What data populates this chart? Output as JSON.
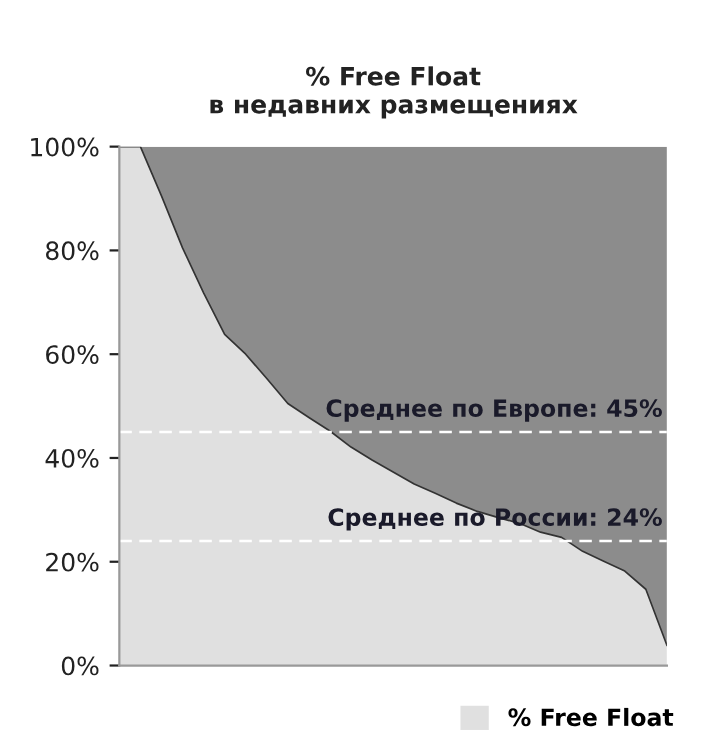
{
  "chart_data": {
    "type": "area",
    "stacked": true,
    "title": "% Free Float\nв недавних размещениях",
    "categories": [
      null,
      null,
      null,
      null,
      null,
      null,
      null,
      null,
      null,
      null,
      null,
      null,
      null,
      null,
      null,
      null,
      null,
      null,
      null,
      null,
      null,
      null,
      null,
      null,
      null,
      null,
      null
    ],
    "series": [
      {
        "name": "% Free Float",
        "color": "#e0e0e0",
        "values": [
          100,
          100,
          90.5,
          80.5,
          71.8,
          63.8,
          60.0,
          55.3,
          50.5,
          47.8,
          45.2,
          42.1,
          39.6,
          37.3,
          35.0,
          33.2,
          31.3,
          29.7,
          28.5,
          27.4,
          25.7,
          24.7,
          22.0,
          20.1,
          18.2,
          14.7,
          3.9
        ]
      },
      {
        "color": "#8c8c8c",
        "values": [
          0,
          0,
          9.5,
          19.5,
          28.2,
          36.2,
          40.0,
          44.7,
          49.5,
          52.2,
          54.8,
          57.9,
          60.4,
          62.7,
          65.0,
          66.8,
          68.7,
          70.3,
          71.5,
          72.6,
          74.3,
          75.3,
          78.0,
          79.9,
          81.8,
          85.3,
          96.1
        ]
      }
    ],
    "ylim": [
      0,
      100
    ],
    "yticks": [
      {
        "value": 0,
        "label": "0%"
      },
      {
        "value": 20,
        "label": "20%"
      },
      {
        "value": 40,
        "label": "40%"
      },
      {
        "value": 60,
        "label": "60%"
      },
      {
        "value": 80,
        "label": "80%"
      },
      {
        "value": 100,
        "label": "100%"
      }
    ],
    "tick_labels": "y",
    "grid": false,
    "legend": "bottom right",
    "ref_lines": [
      {
        "axis": "y",
        "value": 45,
        "label": "Среднее по Европе: 45%",
        "color": "#ffffff",
        "line_style": "dashed"
      },
      {
        "axis": "y",
        "value": 24,
        "label": "Среднее по России: 24%",
        "color": "#ffffff",
        "line_style": "dashed"
      }
    ]
  }
}
